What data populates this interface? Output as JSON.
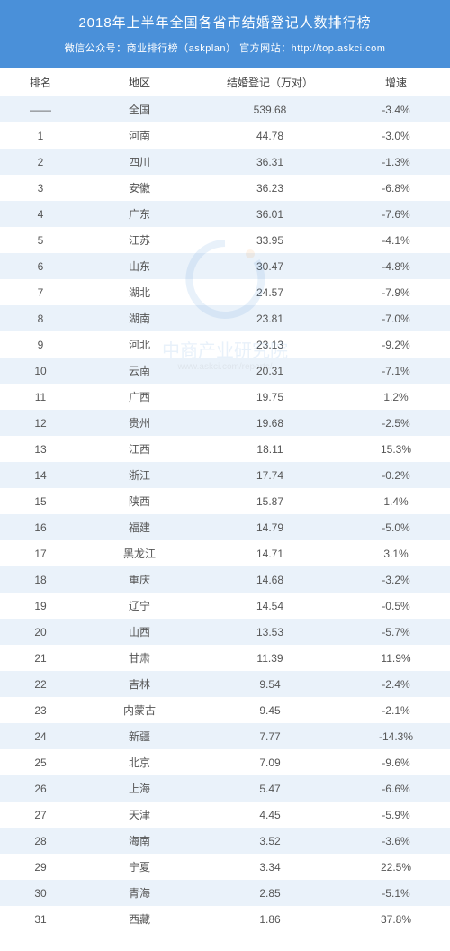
{
  "header": {
    "title": "2018年上半年全国各省市结婚登记人数排行榜",
    "subtitle": "微信公众号：商业排行榜（askplan） 官方网站：http://top.askci.com"
  },
  "colors": {
    "header_bg": "#4a90d9",
    "header_text": "#ffffff",
    "row_even": "#eaf2fa",
    "row_odd": "#ffffff",
    "text": "#555555"
  },
  "columns": [
    "排名",
    "地区",
    "结婚登记（万对）",
    "增速"
  ],
  "rows": [
    {
      "rank": "——",
      "region": "全国",
      "count": "539.68",
      "growth": "-3.4%"
    },
    {
      "rank": "1",
      "region": "河南",
      "count": "44.78",
      "growth": "-3.0%"
    },
    {
      "rank": "2",
      "region": "四川",
      "count": "36.31",
      "growth": "-1.3%"
    },
    {
      "rank": "3",
      "region": "安徽",
      "count": "36.23",
      "growth": "-6.8%"
    },
    {
      "rank": "4",
      "region": "广东",
      "count": "36.01",
      "growth": "-7.6%"
    },
    {
      "rank": "5",
      "region": "江苏",
      "count": "33.95",
      "growth": "-4.1%"
    },
    {
      "rank": "6",
      "region": "山东",
      "count": "30.47",
      "growth": "-4.8%"
    },
    {
      "rank": "7",
      "region": "湖北",
      "count": "24.57",
      "growth": "-7.9%"
    },
    {
      "rank": "8",
      "region": "湖南",
      "count": "23.81",
      "growth": "-7.0%"
    },
    {
      "rank": "9",
      "region": "河北",
      "count": "23.13",
      "growth": "-9.2%"
    },
    {
      "rank": "10",
      "region": "云南",
      "count": "20.31",
      "growth": "-7.1%"
    },
    {
      "rank": "11",
      "region": "广西",
      "count": "19.75",
      "growth": "1.2%"
    },
    {
      "rank": "12",
      "region": "贵州",
      "count": "19.68",
      "growth": "-2.5%"
    },
    {
      "rank": "13",
      "region": "江西",
      "count": "18.11",
      "growth": "15.3%"
    },
    {
      "rank": "14",
      "region": "浙江",
      "count": "17.74",
      "growth": "-0.2%"
    },
    {
      "rank": "15",
      "region": "陕西",
      "count": "15.87",
      "growth": "1.4%"
    },
    {
      "rank": "16",
      "region": "福建",
      "count": "14.79",
      "growth": "-5.0%"
    },
    {
      "rank": "17",
      "region": "黑龙江",
      "count": "14.71",
      "growth": "3.1%"
    },
    {
      "rank": "18",
      "region": "重庆",
      "count": "14.68",
      "growth": "-3.2%"
    },
    {
      "rank": "19",
      "region": "辽宁",
      "count": "14.54",
      "growth": "-0.5%"
    },
    {
      "rank": "20",
      "region": "山西",
      "count": "13.53",
      "growth": "-5.7%"
    },
    {
      "rank": "21",
      "region": "甘肃",
      "count": "11.39",
      "growth": "11.9%"
    },
    {
      "rank": "22",
      "region": "吉林",
      "count": "9.54",
      "growth": "-2.4%"
    },
    {
      "rank": "23",
      "region": "内蒙古",
      "count": "9.45",
      "growth": "-2.1%"
    },
    {
      "rank": "24",
      "region": "新疆",
      "count": "7.77",
      "growth": "-14.3%"
    },
    {
      "rank": "25",
      "region": "北京",
      "count": "7.09",
      "growth": "-9.6%"
    },
    {
      "rank": "26",
      "region": "上海",
      "count": "5.47",
      "growth": "-6.6%"
    },
    {
      "rank": "27",
      "region": "天津",
      "count": "4.45",
      "growth": "-5.9%"
    },
    {
      "rank": "28",
      "region": "海南",
      "count": "3.52",
      "growth": "-3.6%"
    },
    {
      "rank": "29",
      "region": "宁夏",
      "count": "3.34",
      "growth": "22.5%"
    },
    {
      "rank": "30",
      "region": "青海",
      "count": "2.85",
      "growth": "-5.1%"
    },
    {
      "rank": "31",
      "region": "西藏",
      "count": "1.86",
      "growth": "37.8%"
    }
  ],
  "watermark": {
    "text": "中商产业研究院",
    "url": "www.askci.com/reports/"
  }
}
